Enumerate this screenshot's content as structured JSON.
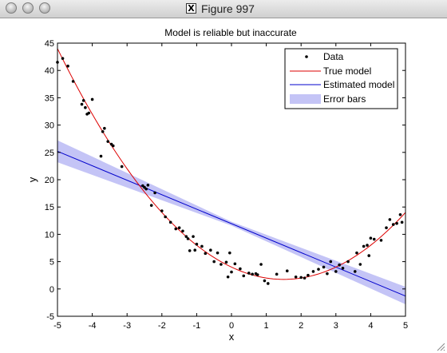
{
  "window": {
    "title": "Figure 997",
    "icon": "x11-icon"
  },
  "chart_data": {
    "type": "scatter",
    "title": "Model is reliable but inaccurate",
    "xlabel": "x",
    "ylabel": "y",
    "xlim": [
      -5,
      5
    ],
    "ylim": [
      -5,
      45
    ],
    "xticks": [
      -5,
      -4,
      -3,
      -2,
      -1,
      0,
      1,
      2,
      3,
      4,
      5
    ],
    "yticks": [
      -5,
      0,
      5,
      10,
      15,
      20,
      25,
      30,
      35,
      40,
      45
    ],
    "grid": false,
    "legend_location": "top-right",
    "legend": [
      "Data",
      "True model",
      "Estimated model",
      "Error bars"
    ],
    "series": [
      {
        "name": "Data",
        "style": "points",
        "color": "#000000",
        "x": [
          -5,
          -4.85,
          -4.7,
          -4.55,
          -4.3,
          -4.25,
          -4.2,
          -4.15,
          -4.1,
          -4.0,
          -3.75,
          -3.7,
          -3.65,
          -3.55,
          -3.45,
          -3.4,
          -3.15,
          -2.55,
          -2.5,
          -2.45,
          -2.4,
          -2.3,
          -2.2,
          -2.0,
          -1.9,
          -1.75,
          -1.6,
          -1.5,
          -1.4,
          -1.3,
          -1.25,
          -1.2,
          -1.1,
          -1.05,
          -1.0,
          -0.85,
          -0.75,
          -0.6,
          -0.5,
          -0.4,
          -0.3,
          -0.15,
          -0.1,
          -0.05,
          0.0,
          0.1,
          0.25,
          0.35,
          0.5,
          0.6,
          0.7,
          0.75,
          0.85,
          0.95,
          1.05,
          1.3,
          1.6,
          1.85,
          2.0,
          2.1,
          2.2,
          2.35,
          2.5,
          2.65,
          2.75,
          2.85,
          3.0,
          3.1,
          3.2,
          3.35,
          3.55,
          3.6,
          3.7,
          3.8,
          3.9,
          3.95,
          4.0,
          4.1,
          4.3,
          4.45,
          4.55,
          4.65,
          4.75,
          4.85,
          4.9
        ],
        "y": [
          41.5,
          42.2,
          40.8,
          38.0,
          33.8,
          34.5,
          33.2,
          32.0,
          32.2,
          34.7,
          24.3,
          28.8,
          29.4,
          27.0,
          26.5,
          26.2,
          22.4,
          18.9,
          18.6,
          18.3,
          19.0,
          15.3,
          17.6,
          14.3,
          13.2,
          12.2,
          11.0,
          11.2,
          10.6,
          9.6,
          9.2,
          7.0,
          9.6,
          7.1,
          8.2,
          7.8,
          6.5,
          7.1,
          5.0,
          6.6,
          4.5,
          4.9,
          2.2,
          6.6,
          3.1,
          4.6,
          3.7,
          2.4,
          2.9,
          2.7,
          2.8,
          2.6,
          4.5,
          1.5,
          1.0,
          2.7,
          3.3,
          2.2,
          2.1,
          2.0,
          2.5,
          3.2,
          3.6,
          4.0,
          2.8,
          5.0,
          3.2,
          4.4,
          3.8,
          5.0,
          3.2,
          6.6,
          4.5,
          7.8,
          8.0,
          6.1,
          9.3,
          9.1,
          8.9,
          11.2,
          12.7,
          11.8,
          12.0,
          13.6,
          12.2
        ]
      },
      {
        "name": "True model",
        "style": "line",
        "color": "#dd0000",
        "equation": "y = x^2 - 3x + 4",
        "x": [
          -5,
          -4,
          -3,
          -2,
          -1,
          0,
          1,
          1.5,
          2,
          3,
          4,
          5
        ],
        "y": [
          44,
          32,
          22,
          14,
          8,
          4,
          2,
          1.75,
          2,
          4,
          8,
          14
        ]
      },
      {
        "name": "Estimated model",
        "style": "line",
        "color": "#0000cc",
        "x": [
          -5,
          5
        ],
        "y": [
          25.2,
          -1.3
        ]
      },
      {
        "name": "Error bars",
        "style": "band",
        "color": "#c4c4f6",
        "x": [
          -5,
          0,
          5
        ],
        "lower": [
          23.2,
          11.6,
          -2.8
        ],
        "upper": [
          27.2,
          12.3,
          0.4
        ]
      }
    ]
  }
}
